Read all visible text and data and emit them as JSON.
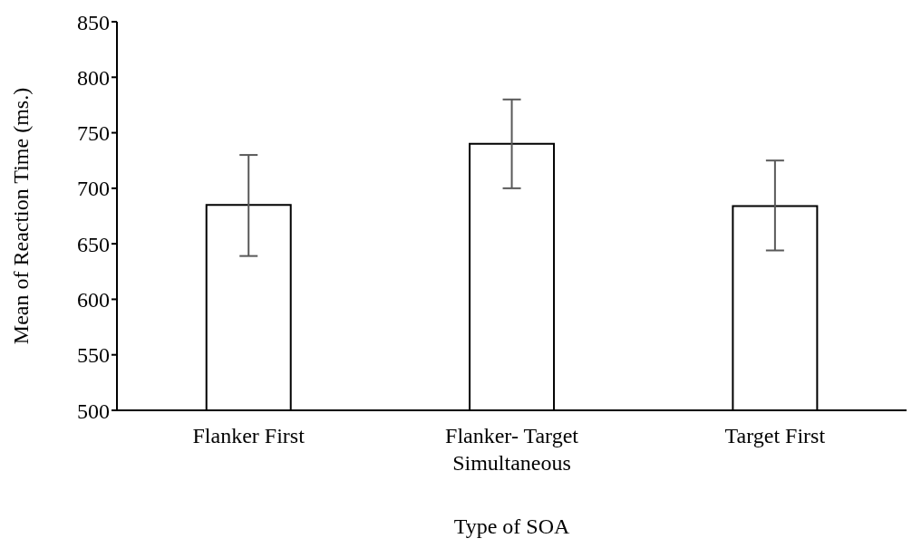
{
  "chart_data": {
    "type": "bar",
    "xlabel": "Type of SOA",
    "ylabel": "Mean of Reaction Time (ms.)",
    "categories": [
      "Flanker First",
      "Flanker- Target Simultaneous",
      "Target First"
    ],
    "values": [
      685,
      740,
      684
    ],
    "errors": [
      [
        639,
        730
      ],
      [
        700,
        780
      ],
      [
        644,
        725
      ]
    ],
    "color": "#ffffff",
    "ylim": [
      500,
      850
    ],
    "yticks": [
      500,
      550,
      600,
      650,
      700,
      750,
      800,
      850
    ],
    "grid": false,
    "legend": false
  }
}
